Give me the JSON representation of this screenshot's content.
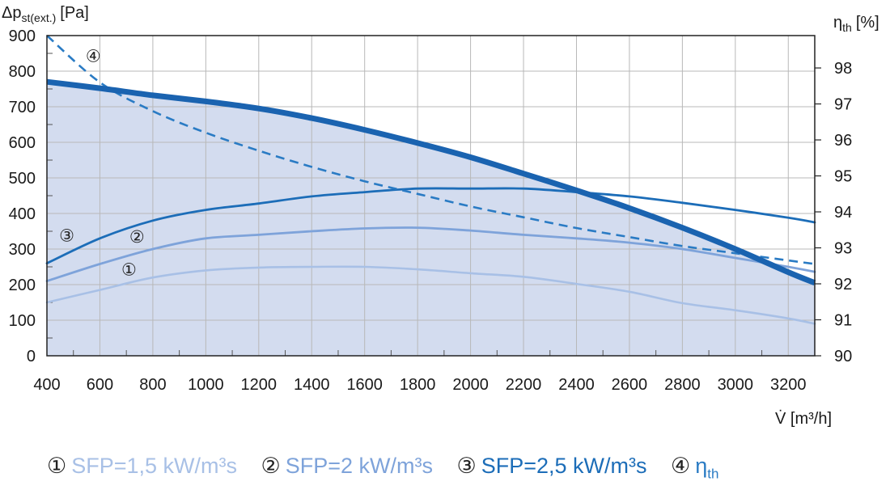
{
  "chart_data": {
    "type": "line",
    "xlabel": "V̇ [m³/h]",
    "ylabel_left": "Δp",
    "ylabel_left_sub": "st(ext.)",
    "ylabel_left_unit": "[Pa]",
    "ylabel_right": "η",
    "ylabel_right_sub": "th",
    "ylabel_right_unit": "[%]",
    "xlim": [
      400,
      3300
    ],
    "xticks": [
      400,
      600,
      800,
      1000,
      1200,
      1400,
      1600,
      1800,
      2000,
      2200,
      2400,
      2600,
      2800,
      3000,
      3200
    ],
    "ylim_left": [
      0,
      900
    ],
    "yticks_left": [
      0,
      100,
      200,
      300,
      400,
      500,
      600,
      700,
      800,
      900
    ],
    "ylim_right": [
      90,
      98.9
    ],
    "yticks_right": [
      90,
      91,
      92,
      93,
      94,
      95,
      96,
      97,
      98
    ],
    "grid": true,
    "legend_placement": "bottom",
    "operating_area": {
      "axis": "left",
      "x": [
        400,
        600,
        800,
        1000,
        1200,
        1400,
        1600,
        1800,
        2000,
        2200,
        2400,
        2600,
        2800,
        3000,
        3200,
        3300
      ],
      "y": [
        770,
        752,
        732,
        715,
        695,
        668,
        635,
        598,
        558,
        512,
        465,
        415,
        360,
        300,
        235,
        205
      ],
      "color": "#d3dcef"
    },
    "series": [
      {
        "marker": "①",
        "label": "SFP=1,5 kW/m³s",
        "axis": "left",
        "color": "#a8c0e6",
        "x": [
          400,
          600,
          800,
          1000,
          1200,
          1400,
          1600,
          1800,
          2000,
          2200,
          2400,
          2600,
          2800,
          3000,
          3200,
          3300
        ],
        "y": [
          150,
          185,
          220,
          240,
          248,
          250,
          250,
          243,
          232,
          222,
          202,
          180,
          148,
          128,
          105,
          90
        ]
      },
      {
        "marker": "②",
        "label": "SFP=2 kW/m³s",
        "axis": "left",
        "color": "#7ea3da",
        "x": [
          400,
          600,
          800,
          1000,
          1200,
          1400,
          1600,
          1800,
          2000,
          2200,
          2400,
          2600,
          2800,
          3000,
          3200,
          3300
        ],
        "y": [
          210,
          258,
          300,
          330,
          340,
          350,
          358,
          360,
          352,
          340,
          330,
          318,
          300,
          275,
          250,
          236
        ]
      },
      {
        "marker": "③",
        "label": "SFP=2,5 kW/m³s",
        "axis": "left",
        "color": "#1c6db8",
        "x": [
          400,
          600,
          800,
          1000,
          1200,
          1400,
          1600,
          1800,
          2000,
          2200,
          2400,
          2600,
          2800,
          3000,
          3200,
          3300
        ],
        "y": [
          260,
          330,
          380,
          410,
          428,
          448,
          460,
          470,
          470,
          470,
          460,
          448,
          430,
          410,
          388,
          375
        ]
      },
      {
        "marker": "④",
        "label": "η",
        "label_sub": "th",
        "axis": "right",
        "style": "dashed",
        "color": "#2a7bc4",
        "x": [
          400,
          600,
          800,
          1000,
          1200,
          1400,
          1600,
          1800,
          2000,
          2200,
          2400,
          2600,
          2800,
          3000,
          3200,
          3300
        ],
        "y": [
          98.9,
          97.6,
          96.8,
          96.2,
          95.7,
          95.25,
          94.85,
          94.5,
          94.15,
          93.85,
          93.55,
          93.3,
          93.05,
          92.85,
          92.65,
          92.55
        ]
      }
    ],
    "annotations": [
      {
        "text": "①",
        "x": 710,
        "y": 240,
        "axis": "left"
      },
      {
        "text": "②",
        "x": 740,
        "y": 332,
        "axis": "left"
      },
      {
        "text": "③",
        "x": 475,
        "y": 335,
        "axis": "left"
      },
      {
        "text": "④",
        "x": 575,
        "y": 98.3,
        "axis": "right"
      }
    ]
  }
}
